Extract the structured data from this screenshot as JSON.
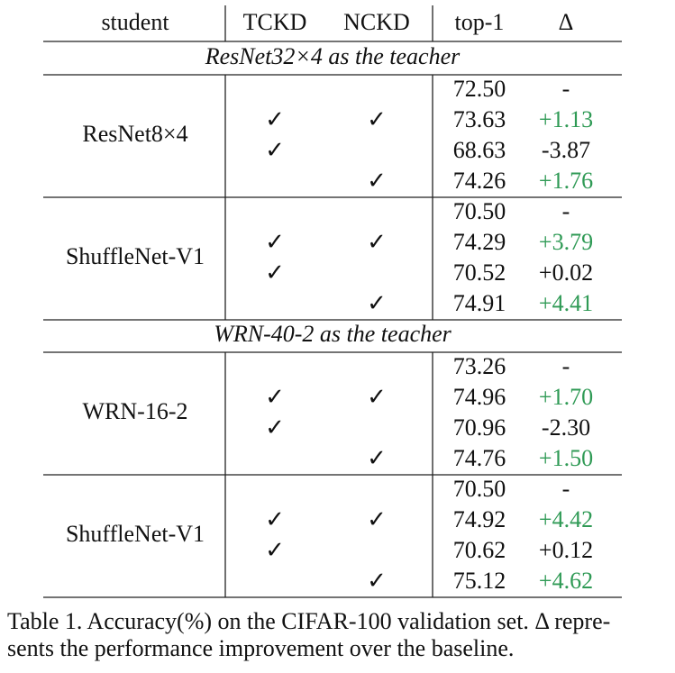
{
  "header": [
    "student",
    "TCKD",
    "NCKD",
    "top-1",
    "Δ"
  ],
  "highlight_color": "#2f9a55",
  "sections": [
    {
      "title": "ResNet32×4 as the teacher",
      "groups": [
        {
          "student": "ResNet8×4",
          "rows": [
            {
              "tckd": null,
              "nckd": null,
              "top1": "72.50",
              "delta": "-",
              "highlight": false
            },
            {
              "tckd": "✓",
              "nckd": "✓",
              "top1": "73.63",
              "delta": "+1.13",
              "highlight": true
            },
            {
              "tckd": "✓",
              "nckd": null,
              "top1": "68.63",
              "delta": "-3.87",
              "highlight": false
            },
            {
              "tckd": null,
              "nckd": "✓",
              "top1": "74.26",
              "delta": "+1.76",
              "highlight": true
            }
          ]
        },
        {
          "student": "ShuffleNet-V1",
          "rows": [
            {
              "tckd": null,
              "nckd": null,
              "top1": "70.50",
              "delta": "-",
              "highlight": false
            },
            {
              "tckd": "✓",
              "nckd": "✓",
              "top1": "74.29",
              "delta": "+3.79",
              "highlight": true
            },
            {
              "tckd": "✓",
              "nckd": null,
              "top1": "70.52",
              "delta": "+0.02",
              "highlight": false
            },
            {
              "tckd": null,
              "nckd": "✓",
              "top1": "74.91",
              "delta": "+4.41",
              "highlight": true
            }
          ]
        }
      ]
    },
    {
      "title": "WRN-40-2 as the teacher",
      "groups": [
        {
          "student": "WRN-16-2",
          "rows": [
            {
              "tckd": null,
              "nckd": null,
              "top1": "73.26",
              "delta": "-",
              "highlight": false
            },
            {
              "tckd": "✓",
              "nckd": "✓",
              "top1": "74.96",
              "delta": "+1.70",
              "highlight": true
            },
            {
              "tckd": "✓",
              "nckd": null,
              "top1": "70.96",
              "delta": "-2.30",
              "highlight": false
            },
            {
              "tckd": null,
              "nckd": "✓",
              "top1": "74.76",
              "delta": "+1.50",
              "highlight": true
            }
          ]
        },
        {
          "student": "ShuffleNet-V1",
          "rows": [
            {
              "tckd": null,
              "nckd": null,
              "top1": "70.50",
              "delta": "-",
              "highlight": false
            },
            {
              "tckd": "✓",
              "nckd": "✓",
              "top1": "74.92",
              "delta": "+4.42",
              "highlight": true
            },
            {
              "tckd": "✓",
              "nckd": null,
              "top1": "70.62",
              "delta": "+0.12",
              "highlight": false
            },
            {
              "tckd": null,
              "nckd": "✓",
              "top1": "75.12",
              "delta": "+4.62",
              "highlight": true
            }
          ]
        }
      ]
    }
  ],
  "caption": [
    "Table 1. Accuracy(%) on the CIFAR-100 validation set. Δ repre-",
    "sents the performance improvement over the baseline."
  ]
}
